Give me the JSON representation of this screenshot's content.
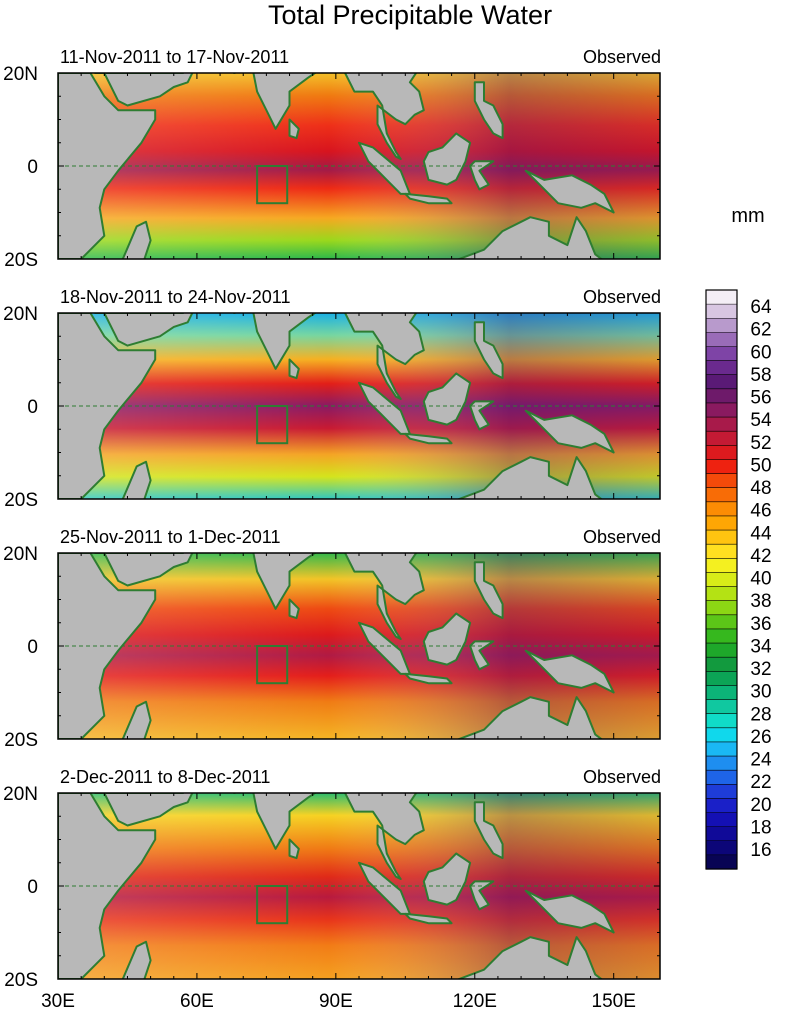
{
  "title": "Total Precipitable Water",
  "units": "mm",
  "lat_labels": [
    "20N",
    "0",
    "20S"
  ],
  "lon_labels": [
    "30E",
    "60E",
    "90E",
    "120E",
    "150E"
  ],
  "lon_range": [
    30,
    160
  ],
  "lat_range": [
    -20,
    20
  ],
  "panels": [
    {
      "date_range": "11-Nov-2011 to 17-Nov-2011",
      "status": "Observed"
    },
    {
      "date_range": "18-Nov-2011 to 24-Nov-2011",
      "status": "Observed"
    },
    {
      "date_range": "25-Nov-2011 to 1-Dec-2011",
      "status": "Observed"
    },
    {
      "date_range": "2-Dec-2011 to 8-Dec-2011",
      "status": "Observed"
    }
  ],
  "colorbar": {
    "labels": [
      "64",
      "62",
      "60",
      "58",
      "56",
      "54",
      "52",
      "50",
      "48",
      "46",
      "44",
      "42",
      "40",
      "38",
      "36",
      "34",
      "32",
      "30",
      "28",
      "26",
      "24",
      "22",
      "20",
      "18",
      "16"
    ],
    "colors": [
      "#f4eef6",
      "#d8c6e2",
      "#b89acc",
      "#9a6cb8",
      "#7e44a6",
      "#6a2a8e",
      "#5a1a76",
      "#6e1a6a",
      "#8a1a60",
      "#a81a4a",
      "#c41a34",
      "#dc1a1e",
      "#ee2210",
      "#f44a0a",
      "#f86c06",
      "#fc8c04",
      "#fea604",
      "#ffc410",
      "#ffe020",
      "#f4f020",
      "#d8ec18",
      "#b4e214",
      "#8cd614",
      "#5cc618",
      "#36b81e",
      "#1ea82a",
      "#129a3e",
      "#0ca456",
      "#0cb478",
      "#10c8a0",
      "#10dcc8",
      "#10d8ec",
      "#1ab8f4",
      "#1e8ef0",
      "#1e64e8",
      "#1e3cd8",
      "#1a20c8",
      "#1410b4",
      "#100a98",
      "#0c0678",
      "#080454"
    ]
  },
  "map_colors": {
    "land": "#b8b8b8",
    "coast": "#2e7d32",
    "box": "#2e7d32",
    "equator": "#2e7d32"
  }
}
